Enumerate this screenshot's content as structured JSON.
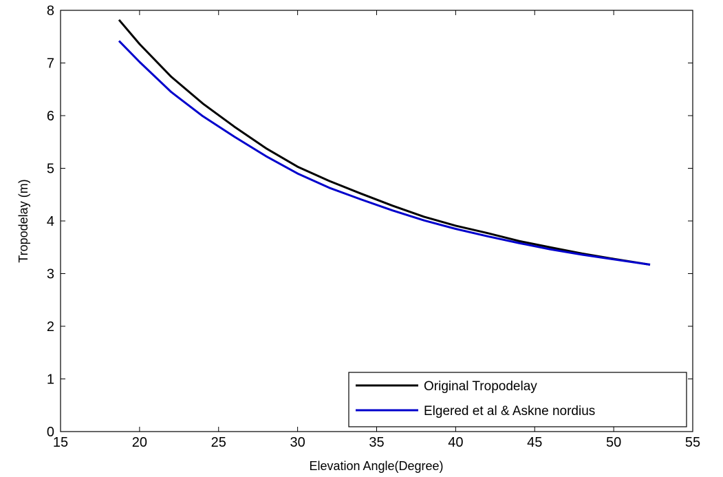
{
  "chart_data": {
    "type": "line",
    "title": "",
    "xlabel": "Elevation Angle(Degree)",
    "ylabel": "Tropodelay (m)",
    "xlim": [
      15,
      55
    ],
    "ylim": [
      0,
      8
    ],
    "xticks": [
      15,
      20,
      25,
      30,
      35,
      40,
      45,
      50,
      55
    ],
    "yticks": [
      0,
      1,
      2,
      3,
      4,
      5,
      6,
      7,
      8
    ],
    "grid": false,
    "legend_position": "bottom-right",
    "series": [
      {
        "name": "Original Tropodelay",
        "color": "#000000",
        "x": [
          18.7,
          20,
          22,
          24,
          26,
          28,
          30,
          32,
          34,
          36,
          38,
          40,
          42,
          44,
          46,
          48,
          50,
          52.3
        ],
        "y": [
          7.82,
          7.36,
          6.74,
          6.23,
          5.79,
          5.38,
          5.03,
          4.76,
          4.52,
          4.29,
          4.08,
          3.91,
          3.77,
          3.62,
          3.5,
          3.38,
          3.28,
          3.17
        ]
      },
      {
        "name": "Elgered et al & Askne nordius",
        "color": "#0000cc",
        "x": [
          18.7,
          20,
          22,
          24,
          26,
          28,
          30,
          32,
          34,
          36,
          38,
          40,
          42,
          44,
          46,
          48,
          50,
          52.3
        ],
        "y": [
          7.42,
          7.02,
          6.45,
          5.99,
          5.6,
          5.23,
          4.9,
          4.63,
          4.41,
          4.2,
          4.01,
          3.85,
          3.71,
          3.58,
          3.46,
          3.36,
          3.27,
          3.17
        ]
      }
    ]
  }
}
